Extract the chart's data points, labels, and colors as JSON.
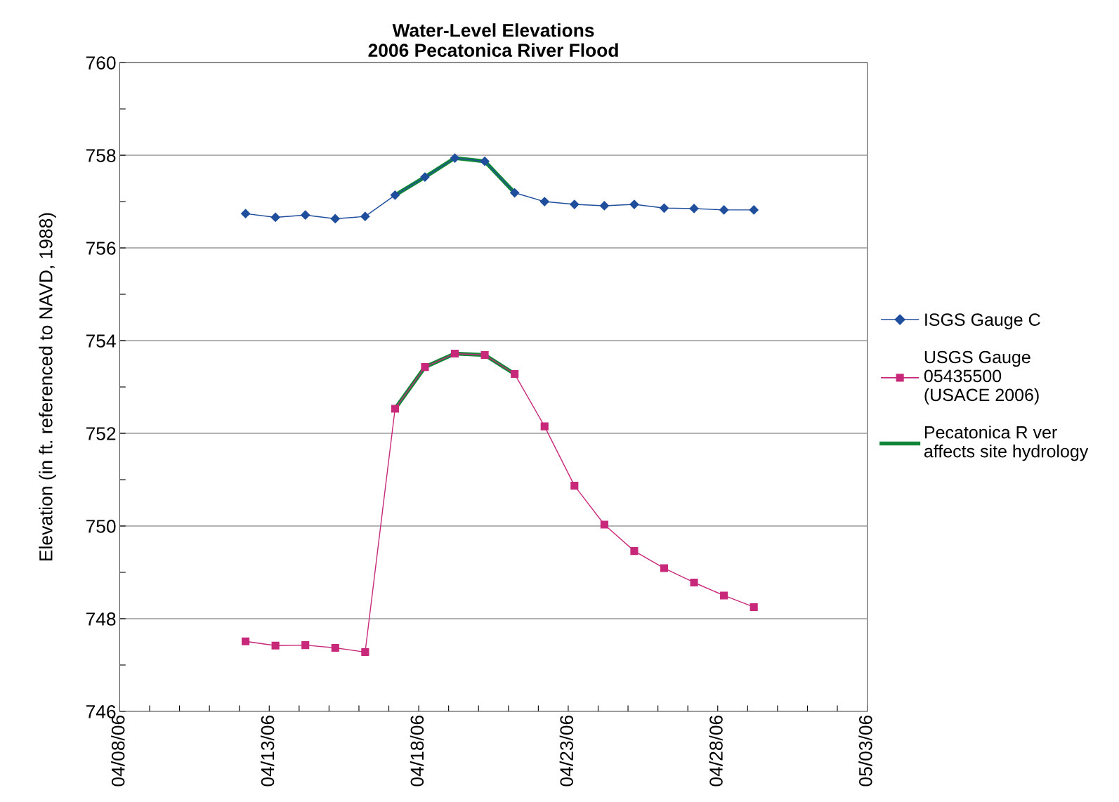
{
  "chart_data": {
    "type": "line",
    "title": "Water-Level Elevations\n2006 Pecatonica River Flood",
    "ylabel": "Elevation (in ft. referenced to NAVD, 1988)",
    "x": [
      "2006-04-12T05:00",
      "2006-04-13T05:00",
      "2006-04-14T05:00",
      "2006-04-15T05:00",
      "2006-04-16T05:00",
      "2006-04-17T05:00",
      "2006-04-18T05:00",
      "2006-04-19T05:00",
      "2006-04-20T05:00",
      "2006-04-21T05:00",
      "2006-04-22T05:00",
      "2006-04-23T05:00",
      "2006-04-24T05:00",
      "2006-04-25T05:00",
      "2006-04-26T05:00",
      "2006-04-27T05:00",
      "2006-04-28T05:00",
      "2006-04-29T05:00"
    ],
    "series": [
      {
        "name": "ISGS Gauge C",
        "color": "#1f4e9c",
        "marker": "diamond",
        "line_style": "solid",
        "values": [
          756.74,
          756.66,
          756.71,
          756.63,
          756.68,
          757.14,
          757.53,
          757.94,
          757.87,
          757.19,
          757.0,
          756.94,
          756.91,
          756.94,
          756.86,
          756.85,
          756.82,
          756.82
        ]
      },
      {
        "name": "USGS Gauge\n05435500\n(USACE 2006)",
        "color": "#c8287a",
        "marker": "square",
        "line_style": "solid",
        "values": [
          747.51,
          747.42,
          747.43,
          747.37,
          747.28,
          752.53,
          753.43,
          753.72,
          753.69,
          753.28,
          752.15,
          750.87,
          750.03,
          749.46,
          749.09,
          748.78,
          748.5,
          748.25
        ]
      },
      {
        "name": "Pecatonica R ver\naffects site hydrology",
        "color": "#12873a",
        "marker": "none",
        "line_style": "solid",
        "x": [
          "2006-04-17T05:00",
          "2006-04-18T05:00",
          "2006-04-19T05:00",
          "2006-04-20T05:00",
          "2006-04-21T05:00"
        ],
        "values": [
          757.14,
          757.53,
          757.94,
          757.87,
          757.19
        ]
      },
      {
        "color": "#12873a",
        "marker": "none",
        "line_style": "solid",
        "x": [
          "2006-04-17T05:00",
          "2006-04-18T05:00",
          "2006-04-19T05:00",
          "2006-04-20T05:00",
          "2006-04-21T05:00"
        ],
        "values": [
          752.53,
          753.43,
          753.72,
          753.69,
          753.28
        ]
      }
    ],
    "xlim": [
      "2006-04-08",
      "2006-05-03"
    ],
    "xticks": [
      {
        "value": "2006-04-08",
        "label": "04/08/06"
      },
      {
        "value": "2006-04-09",
        "label": null
      },
      {
        "value": "2006-04-10",
        "label": null
      },
      {
        "value": "2006-04-11",
        "label": null
      },
      {
        "value": "2006-04-12",
        "label": null
      },
      {
        "value": "2006-04-13",
        "label": "04/13/06"
      },
      {
        "value": "2006-04-14",
        "label": null
      },
      {
        "value": "2006-04-15",
        "label": null
      },
      {
        "value": "2006-04-16",
        "label": null
      },
      {
        "value": "2006-04-17",
        "label": null
      },
      {
        "value": "2006-04-18",
        "label": "04/18/06"
      },
      {
        "value": "2006-04-19",
        "label": null
      },
      {
        "value": "2006-04-20",
        "label": null
      },
      {
        "value": "2006-04-21",
        "label": null
      },
      {
        "value": "2006-04-22",
        "label": null
      },
      {
        "value": "2006-04-23",
        "label": "04/23/06"
      },
      {
        "value": "2006-04-24",
        "label": null
      },
      {
        "value": "2006-04-25",
        "label": null
      },
      {
        "value": "2006-04-26",
        "label": null
      },
      {
        "value": "2006-04-27",
        "label": null
      },
      {
        "value": "2006-04-28",
        "label": "04/28/06"
      },
      {
        "value": "2006-04-29",
        "label": null
      },
      {
        "value": "2006-04-30",
        "label": null
      },
      {
        "value": "2006-05-01",
        "label": null
      },
      {
        "value": "2006-05-02",
        "label": null
      },
      {
        "value": "2006-05-03",
        "label": "05/03/06"
      }
    ],
    "ylim": [
      746,
      760
    ],
    "yticks": [
      746,
      {
        "value": 747,
        "label": null
      },
      748,
      {
        "value": 749,
        "label": null
      },
      750,
      {
        "value": 751,
        "label": null
      },
      752,
      {
        "value": 753,
        "label": null
      },
      754,
      {
        "value": 755,
        "label": null
      },
      756,
      {
        "value": 757,
        "label": null
      },
      758,
      {
        "value": 759,
        "label": null
      },
      760
    ],
    "grid": "y",
    "legend": "right"
  }
}
